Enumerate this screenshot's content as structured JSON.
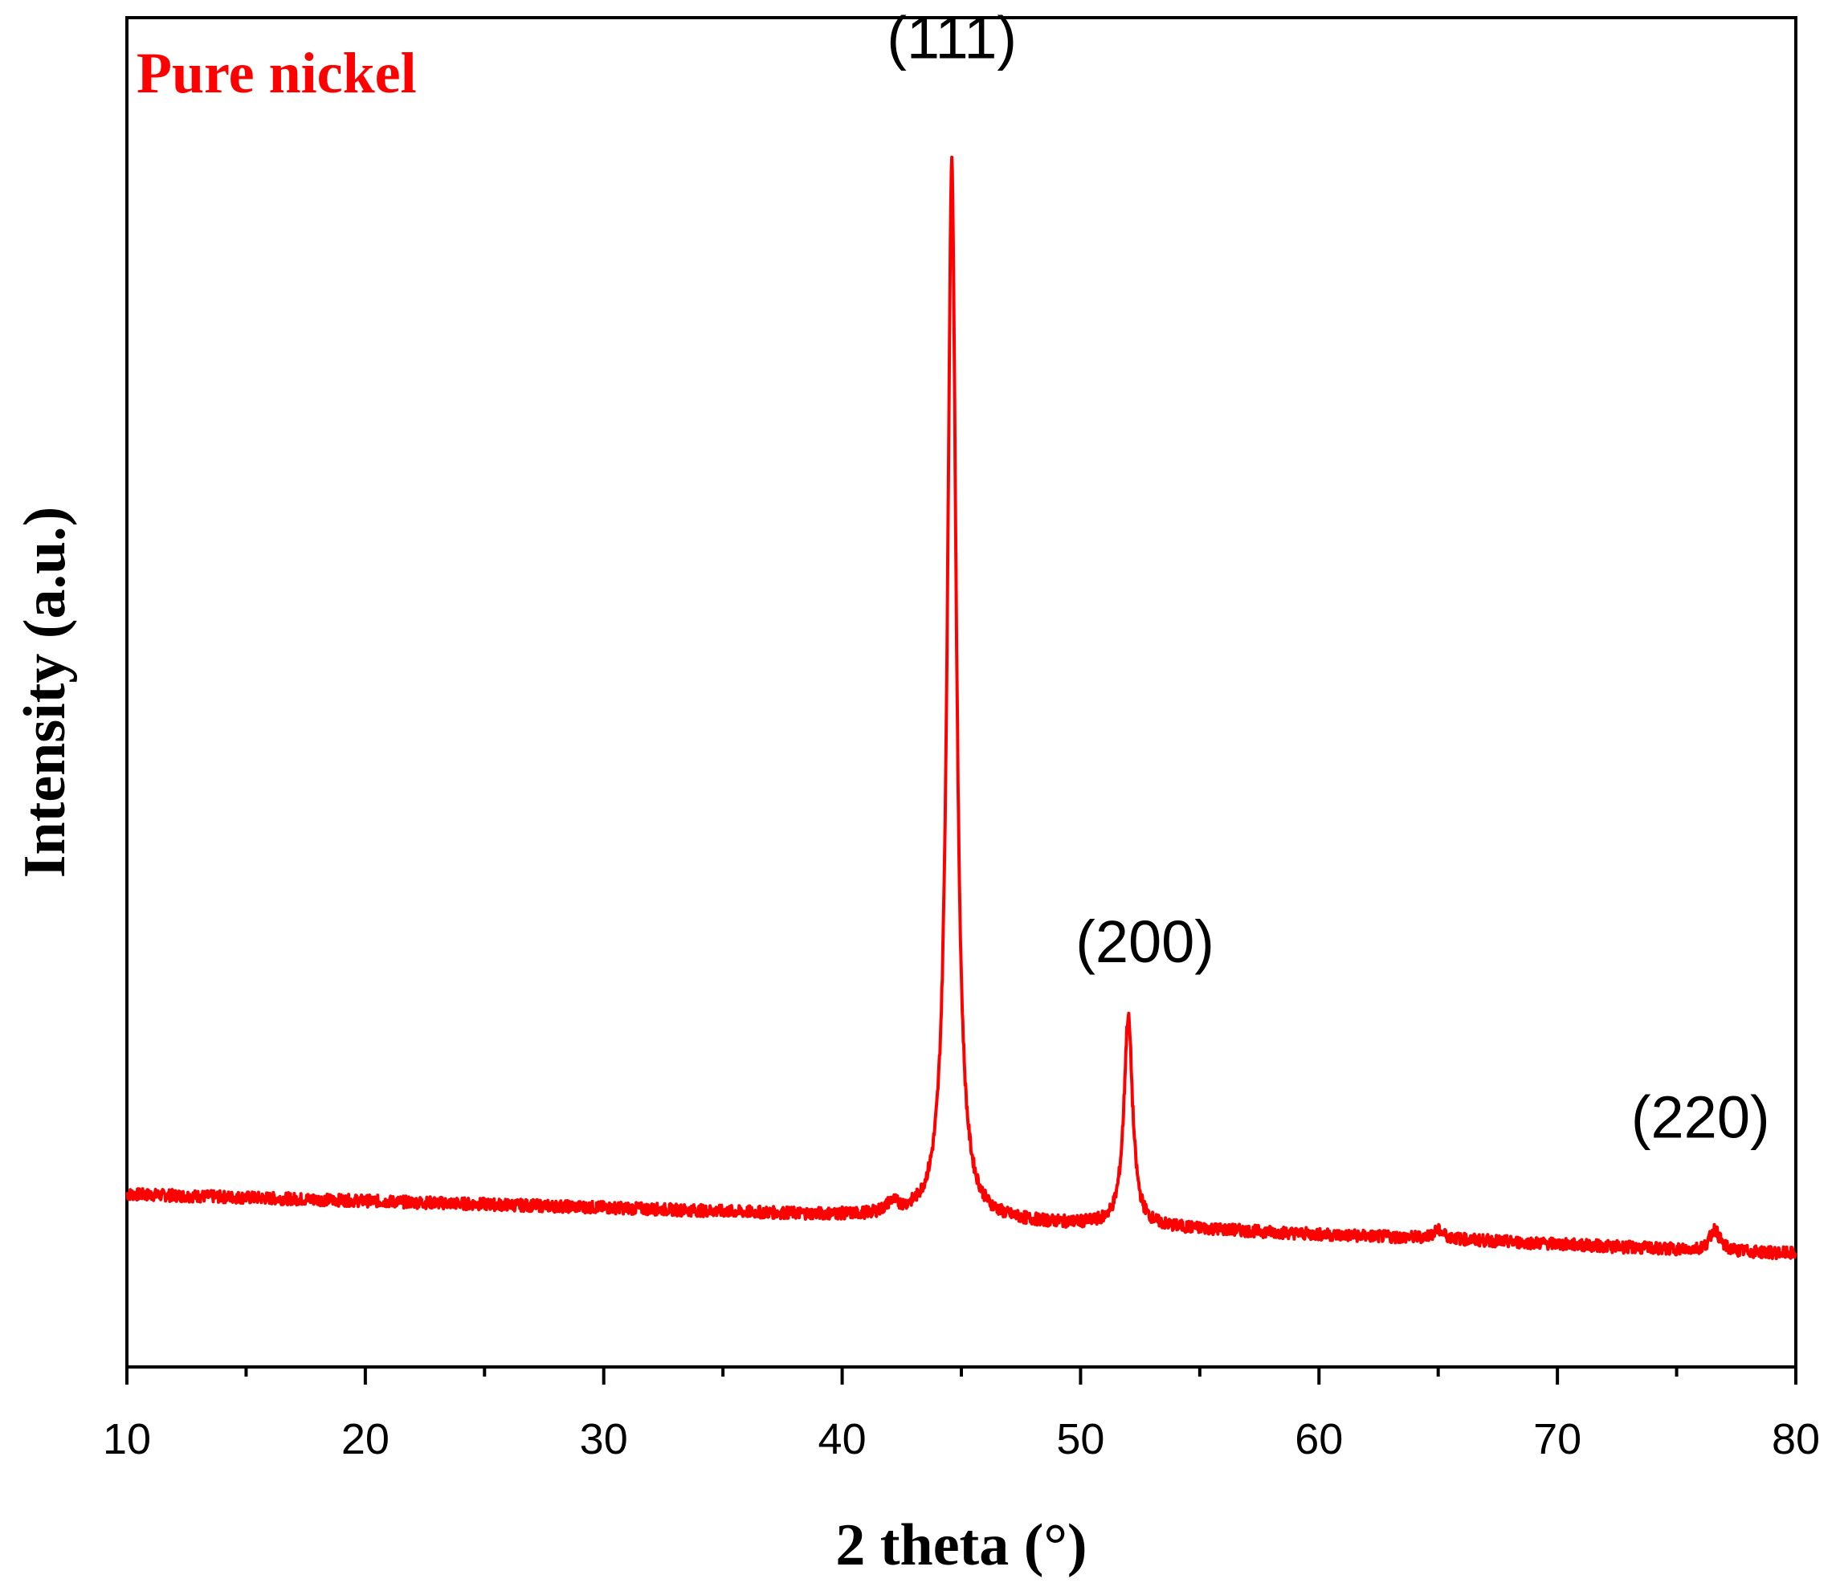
{
  "chart_data": {
    "type": "line",
    "xlabel": "2 theta (°)",
    "ylabel": "Intensity (a.u.)",
    "xlim": [
      10,
      80
    ],
    "ylim": [
      0,
      100
    ],
    "x_ticks": [
      "10",
      "20",
      "30",
      "40",
      "50",
      "60",
      "70",
      "80"
    ],
    "x_minor_step": 5,
    "y_ticks_shown": false,
    "grid": false,
    "series": [
      {
        "name": "Pure nickel",
        "color": "#ff0000",
        "baseline": [
          [
            10,
            12.8
          ],
          [
            20,
            12.3
          ],
          [
            30,
            11.8
          ],
          [
            40,
            11.2
          ],
          [
            45,
            10.8
          ],
          [
            50,
            10.5
          ],
          [
            55,
            10.2
          ],
          [
            60,
            9.8
          ],
          [
            65,
            9.5
          ],
          [
            70,
            9.1
          ],
          [
            75,
            8.7
          ],
          [
            80,
            8.4
          ]
        ],
        "peaks": [
          {
            "x": 44.6,
            "height": 78.4,
            "width": 0.22
          },
          {
            "x": 52.0,
            "height": 15.5,
            "width": 0.22
          },
          {
            "x": 76.6,
            "height": 1.6,
            "width": 0.25
          },
          {
            "x": 42.1,
            "height": 0.8,
            "width": 0.3
          },
          {
            "x": 65.0,
            "height": 0.6,
            "width": 0.3
          }
        ]
      }
    ],
    "annotations": [
      {
        "text": "(111)",
        "x": 44.6,
        "y": 97
      },
      {
        "text": "(200)",
        "x": 52.7,
        "y": 30
      },
      {
        "text": "(220)",
        "x": 76.0,
        "y": 17
      }
    ]
  }
}
